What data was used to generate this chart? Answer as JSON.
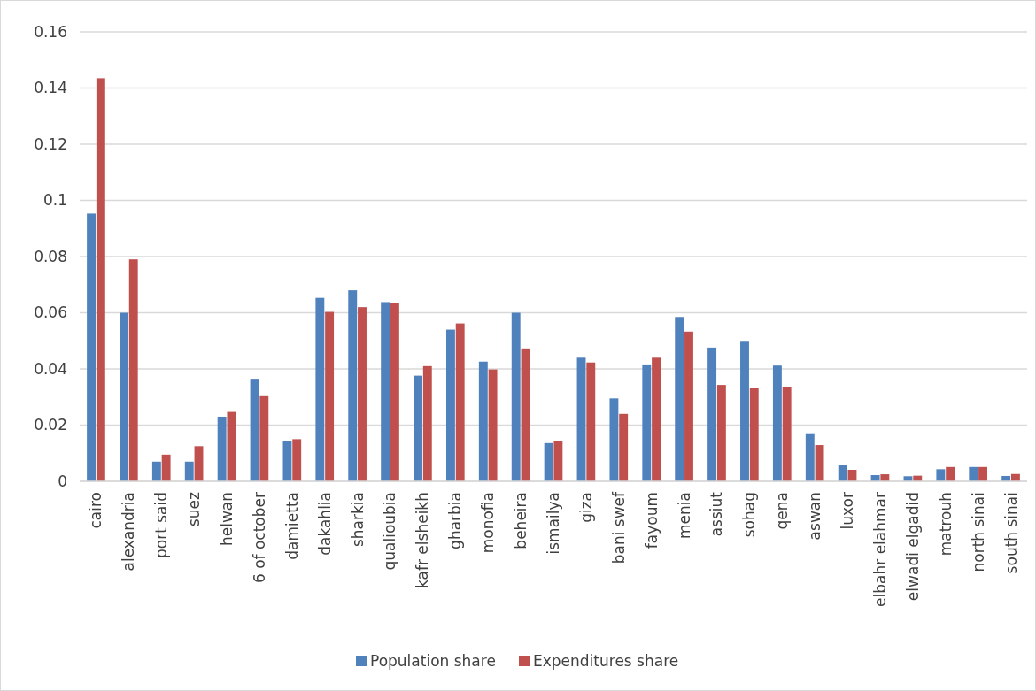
{
  "chart_data": {
    "type": "bar",
    "categories": [
      "cairo",
      "alexandria",
      "port said",
      "suez",
      "helwan",
      "6 of october",
      "damietta",
      "dakahlia",
      "sharkia",
      "qualioubia",
      "kafr elsheikh",
      "gharbia",
      "monofia",
      "beheira",
      "ismailya",
      "giza",
      "bani swef",
      "fayoum",
      "menia",
      "assiut",
      "sohag",
      "qena",
      "aswan",
      "luxor",
      "elbahr elahmar",
      "elwadi elgadid",
      "matrouh",
      "north sinai",
      "south sinai"
    ],
    "series": [
      {
        "name": "Population share",
        "color": "#4f81bd",
        "values": [
          0.0953,
          0.06,
          0.007,
          0.007,
          0.023,
          0.0365,
          0.0142,
          0.0653,
          0.068,
          0.0638,
          0.0376,
          0.054,
          0.0426,
          0.06,
          0.0136,
          0.044,
          0.0295,
          0.0416,
          0.0585,
          0.0476,
          0.05,
          0.0412,
          0.0171,
          0.0058,
          0.0022,
          0.0018,
          0.0043,
          0.0051,
          0.0019
        ]
      },
      {
        "name": "Expenditures share",
        "color": "#c0504d",
        "values": [
          0.1435,
          0.079,
          0.0095,
          0.0125,
          0.0247,
          0.0303,
          0.015,
          0.0603,
          0.062,
          0.0635,
          0.041,
          0.0562,
          0.0398,
          0.0473,
          0.0143,
          0.0423,
          0.024,
          0.044,
          0.0533,
          0.0343,
          0.0332,
          0.0337,
          0.0129,
          0.0041,
          0.0025,
          0.002,
          0.0051,
          0.0051,
          0.0026
        ]
      }
    ],
    "ylim": [
      0,
      0.16
    ],
    "yticks": [
      0,
      0.02,
      0.04,
      0.06,
      0.08,
      0.1,
      0.12,
      0.14,
      0.16
    ],
    "grid": "y",
    "legend": "bottom"
  }
}
